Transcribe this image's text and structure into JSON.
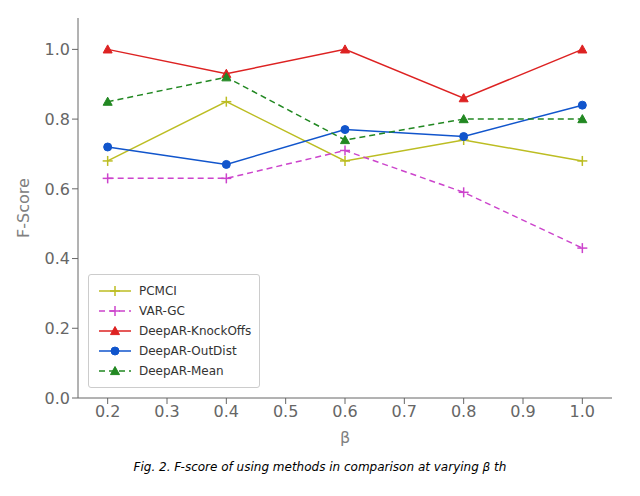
{
  "chart_data": {
    "type": "line",
    "x_label": "β",
    "y_label": "F-Score",
    "caption": "Fig. 2. F-score of using methods in comparison at varying β th",
    "x": [
      0.2,
      0.4,
      0.6,
      0.8,
      1.0
    ],
    "series": [
      {
        "name": "PCMCI",
        "color": "#bcbd22",
        "marker": "plus",
        "line_style": "solid",
        "values": [
          0.68,
          0.85,
          0.68,
          0.74,
          0.68
        ]
      },
      {
        "name": "VAR-GC",
        "color": "#cc44cc",
        "marker": "plus",
        "line_style": "dashed",
        "values": [
          0.63,
          0.63,
          0.71,
          0.59,
          0.43
        ]
      },
      {
        "name": "DeepAR-KnockOffs",
        "color": "#dd2222",
        "marker": "triangle",
        "line_style": "solid",
        "values": [
          1.0,
          0.93,
          1.0,
          0.86,
          1.0
        ]
      },
      {
        "name": "DeepAR-OutDist",
        "color": "#1155cc",
        "marker": "circle",
        "line_style": "solid",
        "values": [
          0.72,
          0.67,
          0.77,
          0.75,
          0.84
        ]
      },
      {
        "name": "DeepAR-Mean",
        "color": "#228822",
        "marker": "triangle",
        "line_style": "dashed",
        "values": [
          0.85,
          0.92,
          0.74,
          0.8,
          0.8
        ]
      }
    ],
    "xlim": [
      0.15,
      1.05
    ],
    "ylim": [
      0.0,
      1.09
    ],
    "xticks": [
      0.2,
      0.3,
      0.4,
      0.5,
      0.6,
      0.7,
      0.8,
      0.9,
      {
        "value": 1.0,
        "label": "1.0"
      }
    ],
    "yticks": [
      {
        "value": 0.0,
        "label": "0.0"
      },
      0.2,
      0.4,
      0.6,
      0.8,
      {
        "value": 1.0,
        "label": "1.0"
      }
    ],
    "grid": false,
    "legend": "lower left"
  }
}
